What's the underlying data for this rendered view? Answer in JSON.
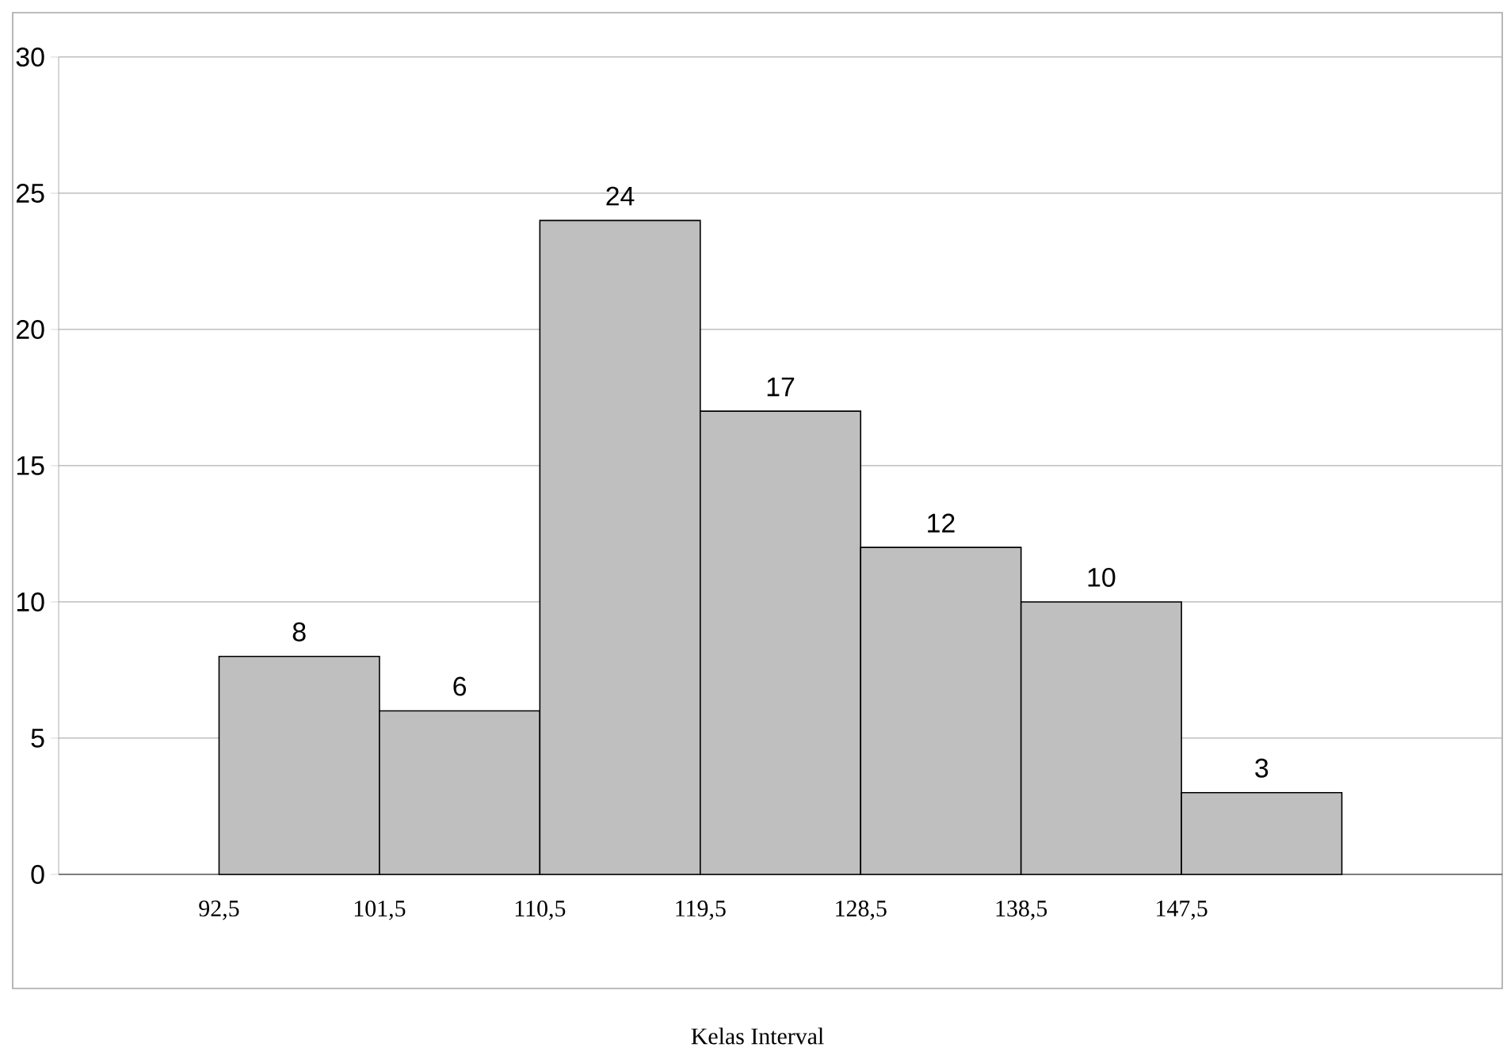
{
  "chart_data": {
    "type": "bar",
    "xlabel": "Kelas Interval",
    "categories": [
      "92,5",
      "101,5",
      "110,5",
      "119,5",
      "128,5",
      "138,5",
      "147,5"
    ],
    "values": [
      8,
      6,
      24,
      17,
      12,
      10,
      3
    ],
    "color": "#bfbfbf",
    "ylim": [
      0,
      30
    ],
    "yticks": [
      0,
      5,
      10,
      15,
      20,
      25,
      30
    ],
    "grid": "y",
    "data_labels": true
  }
}
